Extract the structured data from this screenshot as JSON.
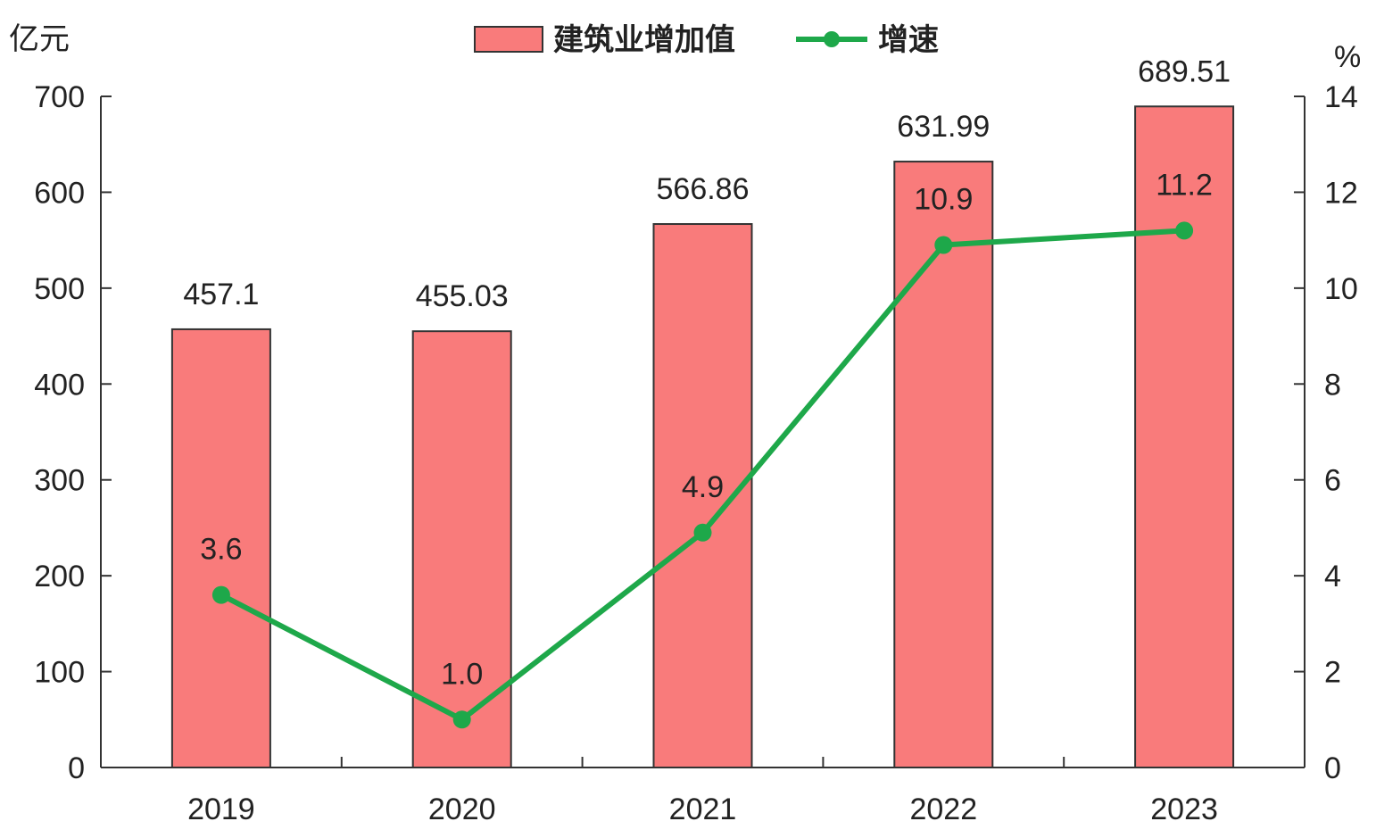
{
  "chart_data": {
    "type": "bar",
    "categories": [
      "2019",
      "2020",
      "2021",
      "2022",
      "2023"
    ],
    "series": [
      {
        "name": "建筑业增加值",
        "type": "bar",
        "axis": "left",
        "values": [
          457.1,
          455.03,
          566.86,
          631.99,
          689.51
        ],
        "labels": [
          "457.1",
          "455.03",
          "566.86",
          "631.99",
          "689.51"
        ],
        "color": "#f97b7b"
      },
      {
        "name": "增速",
        "type": "line",
        "axis": "right",
        "values": [
          3.6,
          1.0,
          4.9,
          10.9,
          11.2
        ],
        "labels": [
          "3.6",
          "1.0",
          "4.9",
          "10.9",
          "11.2"
        ],
        "color": "#1ea84a"
      }
    ],
    "y_left": {
      "unit": "亿元",
      "ylim": [
        0,
        700
      ],
      "ticks": [
        "0",
        "100",
        "200",
        "300",
        "400",
        "500",
        "600",
        "700"
      ]
    },
    "y_right": {
      "unit": "%",
      "ylim": [
        0,
        14
      ],
      "ticks": [
        "0",
        "2",
        "4",
        "6",
        "8",
        "10",
        "12",
        "14"
      ]
    },
    "legend_position": "top-center",
    "grid": false
  }
}
